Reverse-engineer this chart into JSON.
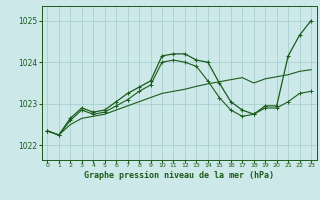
{
  "title": "Graphe pression niveau de la mer (hPa)",
  "bg_color": "#cde8e8",
  "grid_color": "#aacfcf",
  "line_color": "#1a5c1a",
  "xlim": [
    -0.5,
    23.5
  ],
  "ylim": [
    1021.65,
    1025.35
  ],
  "yticks": [
    1022,
    1023,
    1024,
    1025
  ],
  "xticks": [
    0,
    1,
    2,
    3,
    4,
    5,
    6,
    7,
    8,
    9,
    10,
    11,
    12,
    13,
    14,
    15,
    16,
    17,
    18,
    19,
    20,
    21,
    22,
    23
  ],
  "series1": [
    1022.35,
    1022.25,
    1022.65,
    1022.9,
    1022.8,
    1022.85,
    1023.05,
    1023.25,
    1023.4,
    1023.55,
    1024.15,
    1024.2,
    1024.2,
    1024.05,
    1024.0,
    1023.5,
    1023.05,
    1022.85,
    1022.75,
    1022.95,
    1022.95,
    1024.15,
    1024.65,
    1025.0
  ],
  "series2": [
    1022.35,
    1022.25,
    1022.6,
    1022.85,
    1022.75,
    1022.8,
    1022.95,
    1023.1,
    1023.3,
    1023.45,
    1024.0,
    1024.05,
    1024.0,
    1023.9,
    1023.55,
    1023.15,
    1022.85,
    1022.7,
    1022.75,
    1022.9,
    1022.9,
    1023.05,
    1023.25,
    1023.3
  ],
  "series3": [
    1022.35,
    1022.25,
    1022.5,
    1022.65,
    1022.7,
    1022.75,
    1022.85,
    1022.95,
    1023.05,
    1023.15,
    1023.25,
    1023.3,
    1023.35,
    1023.42,
    1023.48,
    1023.53,
    1023.58,
    1023.63,
    1023.5,
    1023.6,
    1023.65,
    1023.7,
    1023.78,
    1023.82
  ]
}
